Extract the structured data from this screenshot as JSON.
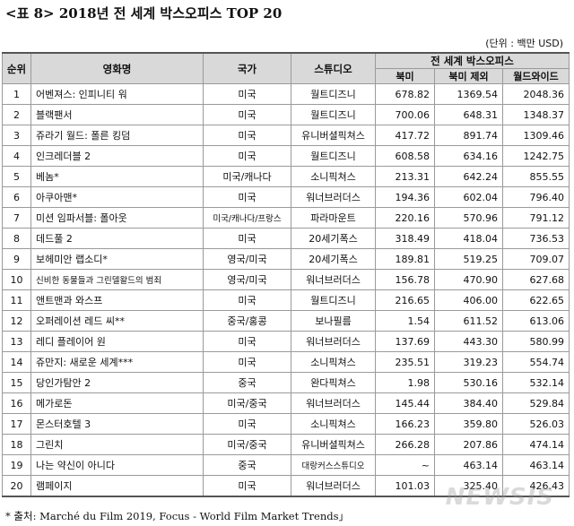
{
  "title": "<표 8> 2018년 전 세계 박스오피스 TOP 20",
  "unit": "(단위 : 백만 USD)",
  "headers": {
    "rank": "순위",
    "movie": "영화명",
    "country": "국가",
    "studio": "스튜디오",
    "group": "전 세계 박스오피스",
    "north_america": "북미",
    "ex_north_america": "북미 제외",
    "worldwide": "월드와이드"
  },
  "rows": [
    {
      "rank": "1",
      "movie": "어벤져스: 인피니티 워",
      "country": "미국",
      "studio": "월트디즈니",
      "na": "678.82",
      "ex": "1369.54",
      "ww": "2048.36"
    },
    {
      "rank": "2",
      "movie": "블랙팬서",
      "country": "미국",
      "studio": "월트디즈니",
      "na": "700.06",
      "ex": "648.31",
      "ww": "1348.37"
    },
    {
      "rank": "3",
      "movie": "쥬라기 월드: 폴른 킹덤",
      "country": "미국",
      "studio": "유니버셜픽쳐스",
      "na": "417.72",
      "ex": "891.74",
      "ww": "1309.46"
    },
    {
      "rank": "4",
      "movie": "인크레더블 2",
      "country": "미국",
      "studio": "월트디즈니",
      "na": "608.58",
      "ex": "634.16",
      "ww": "1242.75"
    },
    {
      "rank": "5",
      "movie": "베놈*",
      "country": "미국/캐나다",
      "studio": "소니픽쳐스",
      "na": "213.31",
      "ex": "642.24",
      "ww": "855.55"
    },
    {
      "rank": "6",
      "movie": "아쿠아맨*",
      "country": "미국",
      "studio": "워너브러더스",
      "na": "194.36",
      "ex": "602.04",
      "ww": "796.40"
    },
    {
      "rank": "7",
      "movie": "미션 임파서블: 폴아웃",
      "country": "미국/캐나다/프랑스",
      "studio": "파라마운트",
      "na": "220.16",
      "ex": "570.96",
      "ww": "791.12"
    },
    {
      "rank": "8",
      "movie": "데드풀 2",
      "country": "미국",
      "studio": "20세기폭스",
      "na": "318.49",
      "ex": "418.04",
      "ww": "736.53"
    },
    {
      "rank": "9",
      "movie": "보헤미안 랩소디*",
      "country": "영국/미국",
      "studio": "20세기폭스",
      "na": "189.81",
      "ex": "519.25",
      "ww": "709.07"
    },
    {
      "rank": "10",
      "movie": "신비한 동물들과 그린델왈드의 범죄",
      "country": "영국/미국",
      "studio": "워너브러더스",
      "na": "156.78",
      "ex": "470.90",
      "ww": "627.68"
    },
    {
      "rank": "11",
      "movie": "앤트맨과 와스프",
      "country": "미국",
      "studio": "월트디즈니",
      "na": "216.65",
      "ex": "406.00",
      "ww": "622.65"
    },
    {
      "rank": "12",
      "movie": "오퍼레이션 레드 씨**",
      "country": "중국/홍콩",
      "studio": "보나필름",
      "na": "1.54",
      "ex": "611.52",
      "ww": "613.06"
    },
    {
      "rank": "13",
      "movie": "레디 플레이어 원",
      "country": "미국",
      "studio": "워너브러더스",
      "na": "137.69",
      "ex": "443.30",
      "ww": "580.99"
    },
    {
      "rank": "14",
      "movie": "쥬만지: 새로운 세계***",
      "country": "미국",
      "studio": "소니픽쳐스",
      "na": "235.51",
      "ex": "319.23",
      "ww": "554.74"
    },
    {
      "rank": "15",
      "movie": "당인가탐안 2",
      "country": "중국",
      "studio": "완다픽쳐스",
      "na": "1.98",
      "ex": "530.16",
      "ww": "532.14"
    },
    {
      "rank": "16",
      "movie": "메가로돈",
      "country": "미국/중국",
      "studio": "워너브러더스",
      "na": "145.44",
      "ex": "384.40",
      "ww": "529.84"
    },
    {
      "rank": "17",
      "movie": "몬스터호텔 3",
      "country": "미국",
      "studio": "소니픽쳐스",
      "na": "166.23",
      "ex": "359.80",
      "ww": "526.03"
    },
    {
      "rank": "18",
      "movie": "그린치",
      "country": "미국/중국",
      "studio": "유니버셜픽쳐스",
      "na": "266.28",
      "ex": "207.86",
      "ww": "474.14"
    },
    {
      "rank": "19",
      "movie": "나는 약신이 아니다",
      "country": "중국",
      "studio": "대랑커스스튜디오",
      "na": "~",
      "ex": "463.14",
      "ww": "463.14"
    },
    {
      "rank": "20",
      "movie": "램페이지",
      "country": "미국",
      "studio": "워너브러더스",
      "na": "101.03",
      "ex": "325.40",
      "ww": "426.43"
    }
  ],
  "source": "* 출처: Marché du Film 2019, Focus - World Film Market Trends」",
  "watermark": "NEWSIS"
}
